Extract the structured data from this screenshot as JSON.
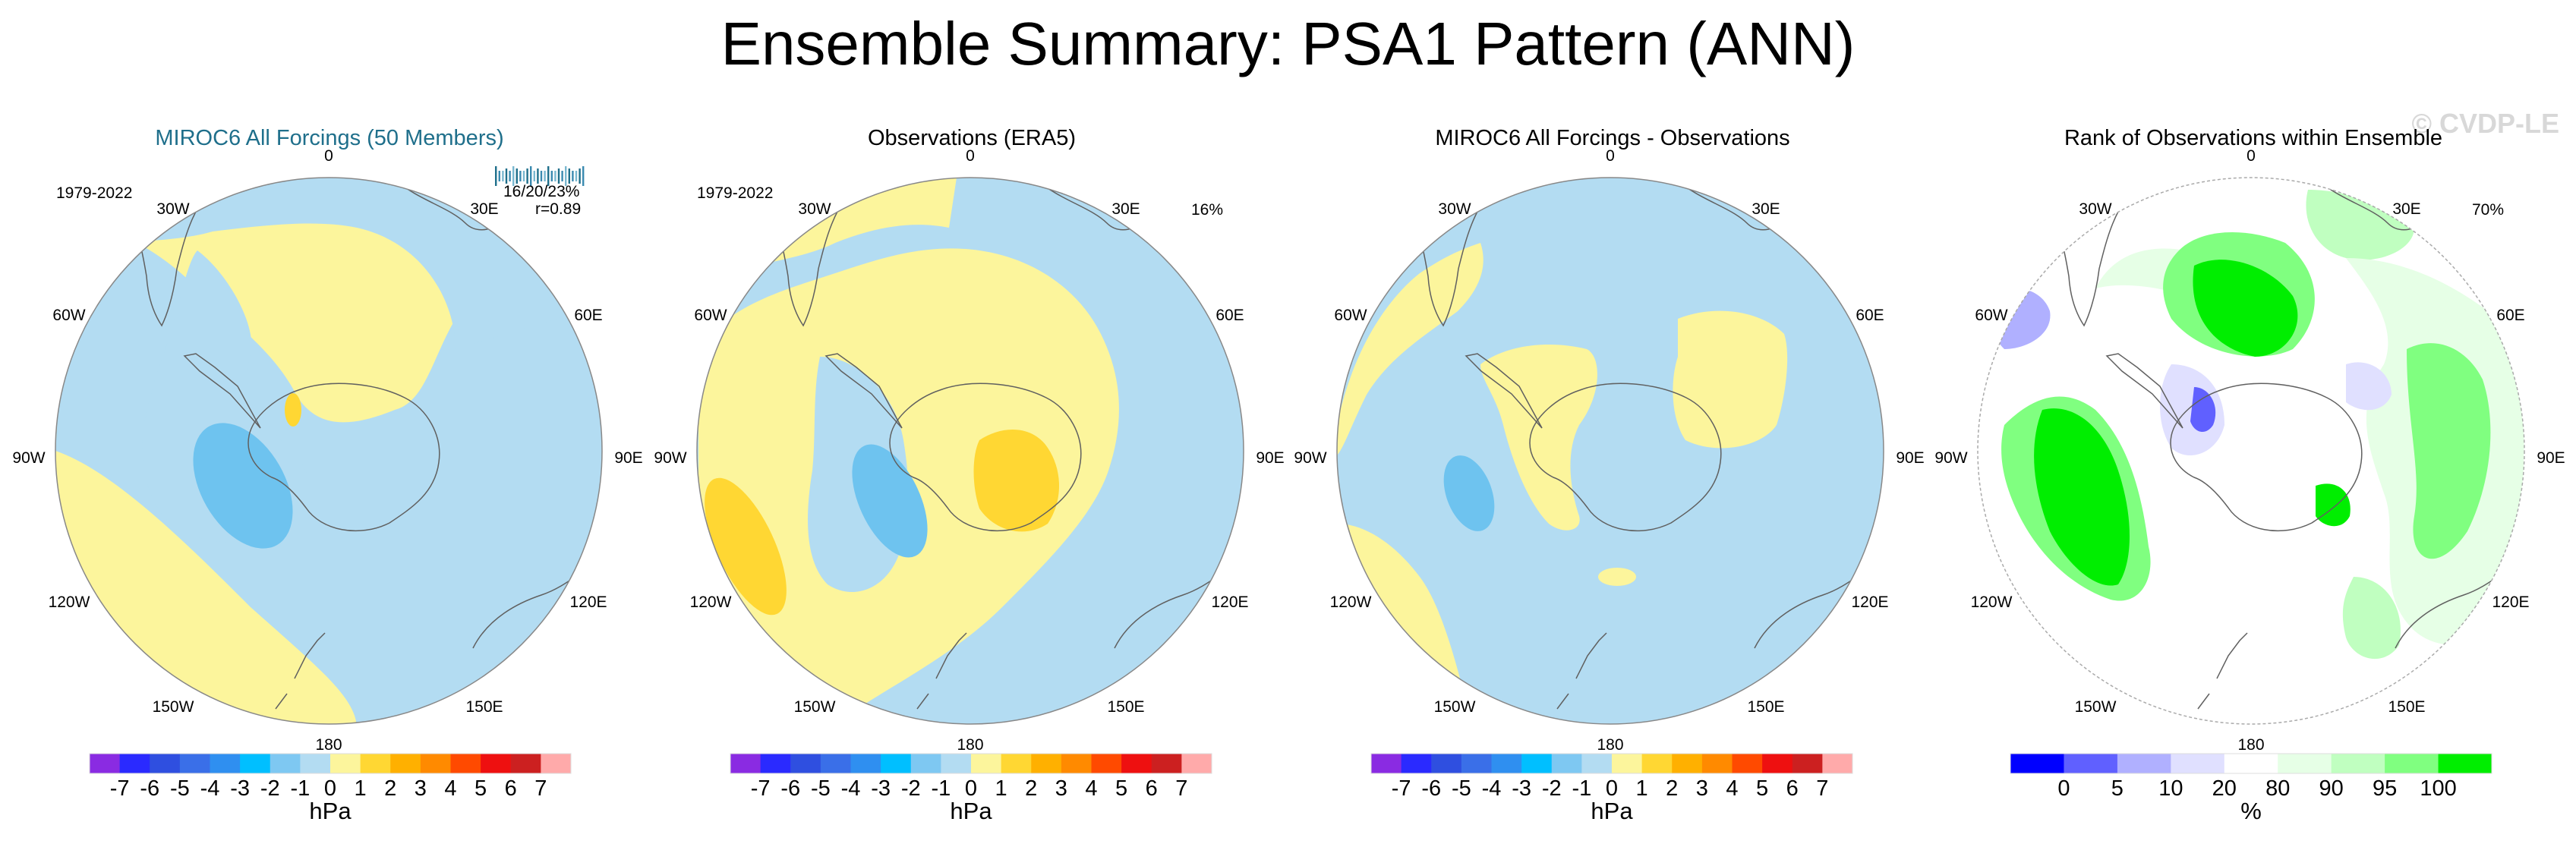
{
  "title": "Ensemble Summary: PSA1 Pattern (ANN)",
  "watermark": "© CVDP-LE",
  "colors": {
    "title_p1": "#1f6f8b",
    "ocean": "#b3dcf2",
    "pos": "#fcf59c",
    "pos2": "#ffd733",
    "neg2": "#6ec3ef",
    "coast": "#606060",
    "blue_dark": "#0000ff",
    "green": "#00ee00"
  },
  "panels": [
    {
      "title": "MIROC6 All Forcings (50 Members)",
      "period": "1979-2022",
      "stat_line1": "16/20/23%",
      "stat_line2": "r=0.89"
    },
    {
      "title": "Observations (ERA5)",
      "period": "1979-2022",
      "pct": "16%"
    },
    {
      "title": "MIROC6 All Forcings - Observations"
    },
    {
      "title": "Rank of Observations within Ensemble",
      "pct": "70%"
    }
  ],
  "lon_labels": {
    "n": "0",
    "s": "180",
    "ne": "30E",
    "ene": "60E",
    "e": "90E",
    "ese": "120E",
    "se": "150E",
    "sw": "150W",
    "wsw": "120W",
    "w": "90W",
    "wnw": "60W",
    "nw": "30W"
  },
  "hpa_colorbar": {
    "unit": "hPa",
    "colors": [
      "#8a2be2",
      "#2a2aff",
      "#2f4fe0",
      "#3a6fe8",
      "#2f8ff0",
      "#00bfff",
      "#7ec8f2",
      "#b3dcf2",
      "#fcf59c",
      "#ffd733",
      "#ffb000",
      "#ff8a00",
      "#ff4a00",
      "#ee1010",
      "#cc2020",
      "#ffaaaa"
    ],
    "labels": [
      "-7",
      "-6",
      "-5",
      "-4",
      "-3",
      "-2",
      "-1",
      "0",
      "1",
      "2",
      "3",
      "4",
      "5",
      "6",
      "7"
    ]
  },
  "rank_colorbar": {
    "unit": "%",
    "colors": [
      "#0000ff",
      "#6060ff",
      "#b0b0ff",
      "#e0e0ff",
      "#ffffff",
      "#e6ffe6",
      "#c0ffc0",
      "#80ff80",
      "#00ee00"
    ],
    "labels": [
      "0",
      "5",
      "10",
      "20",
      "80",
      "90",
      "95",
      "100"
    ]
  }
}
